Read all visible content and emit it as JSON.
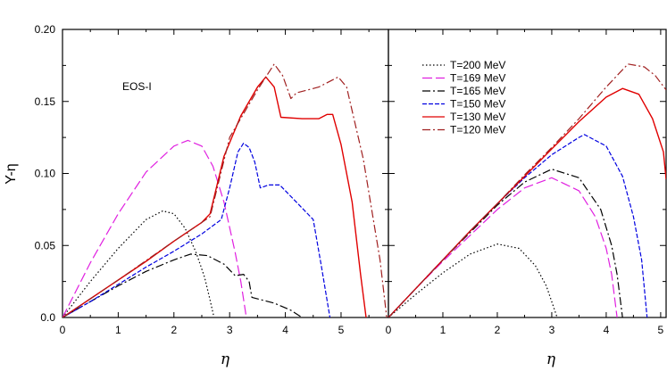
{
  "chart_data": [
    {
      "type": "line",
      "annotation": "EOS-I",
      "xlabel": "η",
      "ylabel": "Y-η",
      "xlim": [
        0,
        5.85
      ],
      "ylim": [
        0,
        0.2
      ],
      "x_ticks": [
        "0",
        "1",
        "2",
        "3",
        "4",
        "5"
      ],
      "y_ticks": [
        "0.0",
        "0.05",
        "0.10",
        "0.15",
        "0.20"
      ],
      "series": [
        {
          "name": "T=200 MeV",
          "color": "#000000",
          "dash": "dotted",
          "x": [
            0,
            0.5,
            1.0,
            1.5,
            1.8,
            2.0,
            2.2,
            2.4,
            2.55,
            2.65,
            2.72
          ],
          "y": [
            0,
            0.025,
            0.048,
            0.068,
            0.074,
            0.072,
            0.062,
            0.045,
            0.028,
            0.012,
            0
          ]
        },
        {
          "name": "T=169 MeV",
          "color": "#e020e0",
          "dash": "longdash",
          "x": [
            0,
            0.5,
            1.0,
            1.5,
            2.0,
            2.25,
            2.5,
            2.7,
            2.9,
            3.1,
            3.2,
            3.3
          ],
          "y": [
            0,
            0.038,
            0.072,
            0.101,
            0.119,
            0.123,
            0.119,
            0.105,
            0.08,
            0.045,
            0.025,
            0
          ]
        },
        {
          "name": "T=165 MeV",
          "color": "#000000",
          "dash": "dashdot",
          "x": [
            0,
            0.5,
            1.0,
            1.5,
            2.0,
            2.3,
            2.6,
            2.9,
            3.1,
            3.25,
            3.35,
            3.4,
            3.8,
            4.1,
            4.3
          ],
          "y": [
            0,
            0.011,
            0.022,
            0.032,
            0.04,
            0.044,
            0.043,
            0.037,
            0.029,
            0.03,
            0.025,
            0.014,
            0.01,
            0.005,
            0
          ]
        },
        {
          "name": "T=150 MeV",
          "color": "#0000e0",
          "dash": "dashed",
          "x": [
            0,
            0.5,
            1.0,
            1.5,
            2.0,
            2.5,
            2.85,
            3.0,
            3.15,
            3.25,
            3.35,
            3.45,
            3.55,
            3.7,
            3.9,
            4.2,
            4.5,
            4.65,
            4.8
          ],
          "y": [
            0,
            0.011,
            0.023,
            0.035,
            0.046,
            0.058,
            0.068,
            0.09,
            0.115,
            0.121,
            0.118,
            0.108,
            0.09,
            0.092,
            0.092,
            0.08,
            0.068,
            0.035,
            0
          ]
        },
        {
          "name": "T=130 MeV",
          "color": "#e00000",
          "dash": "solid",
          "x": [
            0,
            0.5,
            1.0,
            1.5,
            2.0,
            2.5,
            2.65,
            2.9,
            3.2,
            3.5,
            3.65,
            3.8,
            3.92,
            4.3,
            4.6,
            4.75,
            4.85,
            5.0,
            5.2,
            5.35,
            5.45
          ],
          "y": [
            0,
            0.013,
            0.026,
            0.039,
            0.053,
            0.066,
            0.072,
            0.112,
            0.14,
            0.16,
            0.167,
            0.16,
            0.139,
            0.138,
            0.138,
            0.141,
            0.141,
            0.12,
            0.08,
            0.03,
            0
          ]
        },
        {
          "name": "T=120 MeV",
          "color": "#a02020",
          "dash": "dashdot",
          "x": [
            0,
            1.0,
            2.0,
            2.5,
            2.65,
            3.0,
            3.5,
            3.8,
            3.95,
            4.1,
            4.2,
            4.6,
            4.95,
            5.1,
            5.4,
            5.7,
            5.82
          ],
          "y": [
            0,
            0.026,
            0.053,
            0.066,
            0.07,
            0.125,
            0.158,
            0.176,
            0.168,
            0.152,
            0.156,
            0.16,
            0.167,
            0.16,
            0.11,
            0.04,
            0
          ]
        }
      ]
    },
    {
      "type": "line",
      "xlabel": "η",
      "xlim": [
        0,
        5.1
      ],
      "ylim": [
        0,
        0.2
      ],
      "x_ticks": [
        "0",
        "1",
        "2",
        "3",
        "4",
        "5"
      ],
      "legend_position": "top-left",
      "series": [
        {
          "name": "T=200 MeV",
          "color": "#000000",
          "dash": "dotted",
          "x": [
            0,
            0.5,
            1.0,
            1.5,
            2.0,
            2.4,
            2.7,
            2.9,
            3.0,
            3.1
          ],
          "y": [
            0,
            0.016,
            0.031,
            0.044,
            0.051,
            0.048,
            0.036,
            0.022,
            0.011,
            0
          ]
        },
        {
          "name": "T=169 MeV",
          "color": "#e020e0",
          "dash": "longdash",
          "x": [
            0,
            0.5,
            1.0,
            1.5,
            2.0,
            2.5,
            3.0,
            3.5,
            3.8,
            4.0,
            4.1,
            4.2
          ],
          "y": [
            0,
            0.02,
            0.039,
            0.057,
            0.075,
            0.09,
            0.097,
            0.088,
            0.07,
            0.048,
            0.03,
            0
          ]
        },
        {
          "name": "T=165 MeV",
          "color": "#000000",
          "dash": "dashdot",
          "x": [
            0,
            0.5,
            1.0,
            1.5,
            2.0,
            2.5,
            3.0,
            3.5,
            3.9,
            4.1,
            4.2,
            4.3
          ],
          "y": [
            0,
            0.02,
            0.04,
            0.059,
            0.078,
            0.094,
            0.103,
            0.097,
            0.075,
            0.05,
            0.03,
            0
          ]
        },
        {
          "name": "T=150 MeV",
          "color": "#0000e0",
          "dash": "dashed",
          "x": [
            0,
            0.5,
            1.0,
            1.5,
            2.0,
            2.5,
            3.0,
            3.5,
            3.6,
            4.0,
            4.3,
            4.5,
            4.65,
            4.75
          ],
          "y": [
            0,
            0.02,
            0.04,
            0.06,
            0.079,
            0.097,
            0.113,
            0.125,
            0.127,
            0.119,
            0.098,
            0.07,
            0.04,
            0
          ]
        },
        {
          "name": "T=130 MeV",
          "color": "#e00000",
          "dash": "solid",
          "x": [
            0,
            0.5,
            1.0,
            1.5,
            2.0,
            2.5,
            3.0,
            3.5,
            4.0,
            4.3,
            4.6,
            4.85,
            5.05,
            5.1
          ],
          "y": [
            0,
            0.02,
            0.04,
            0.06,
            0.079,
            0.098,
            0.117,
            0.136,
            0.153,
            0.159,
            0.155,
            0.138,
            0.115,
            0.096
          ]
        },
        {
          "name": "T=120 MeV",
          "color": "#a02020",
          "dash": "dashdot",
          "x": [
            0,
            0.5,
            1.0,
            1.5,
            2.0,
            2.5,
            3.0,
            3.5,
            4.0,
            4.4,
            4.7,
            4.9,
            5.1
          ],
          "y": [
            0,
            0.02,
            0.04,
            0.06,
            0.079,
            0.099,
            0.118,
            0.138,
            0.16,
            0.176,
            0.174,
            0.168,
            0.158
          ]
        }
      ]
    }
  ]
}
